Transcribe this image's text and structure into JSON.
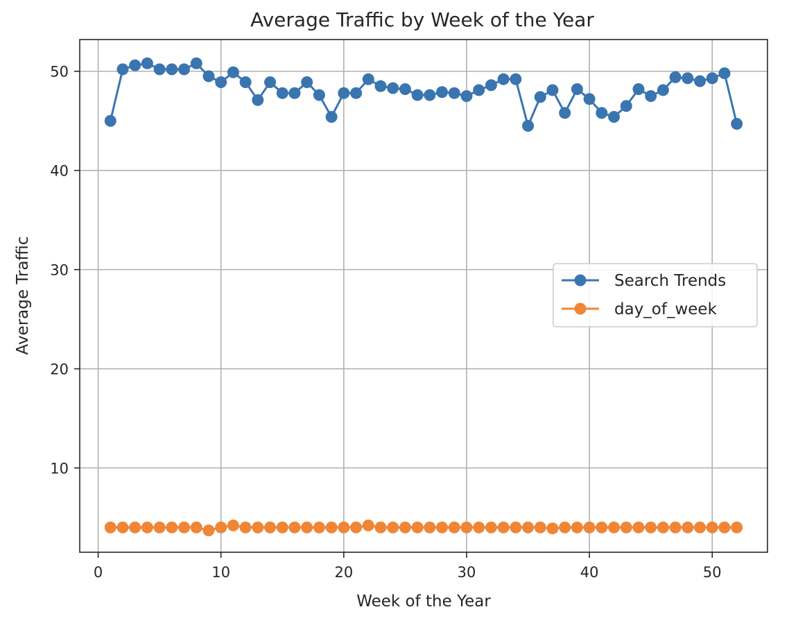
{
  "chart_data": {
    "type": "line",
    "title": "Average Traffic by Week of the Year",
    "xlabel": "Week of the Year",
    "ylabel": "Average Traffic",
    "xlim": [
      -1.5,
      54.5
    ],
    "ylim": [
      1.5,
      53.2
    ],
    "xticks": [
      0,
      10,
      20,
      30,
      40,
      50
    ],
    "yticks": [
      10,
      20,
      30,
      40,
      50
    ],
    "grid": true,
    "legend_position": "center-right",
    "x": [
      1,
      2,
      3,
      4,
      5,
      6,
      7,
      8,
      9,
      10,
      11,
      12,
      13,
      14,
      15,
      16,
      17,
      18,
      19,
      20,
      21,
      22,
      23,
      24,
      25,
      26,
      27,
      28,
      29,
      30,
      31,
      32,
      33,
      34,
      35,
      36,
      37,
      38,
      39,
      40,
      41,
      42,
      43,
      44,
      45,
      46,
      47,
      48,
      49,
      50,
      51,
      52
    ],
    "series": [
      {
        "name": "Search Trends",
        "color": "#3a75b0",
        "marker": "circle",
        "values": [
          45.0,
          50.2,
          50.6,
          50.8,
          50.2,
          50.2,
          50.2,
          50.8,
          49.5,
          48.9,
          49.9,
          48.9,
          47.1,
          48.9,
          47.8,
          47.8,
          48.9,
          47.6,
          45.4,
          47.8,
          47.8,
          49.2,
          48.5,
          48.3,
          48.2,
          47.6,
          47.6,
          47.9,
          47.8,
          47.5,
          48.1,
          48.6,
          49.2,
          49.2,
          44.5,
          47.4,
          48.1,
          45.8,
          48.2,
          47.2,
          45.8,
          45.4,
          46.5,
          48.2,
          47.5,
          48.1,
          49.4,
          49.3,
          49.0,
          49.3,
          49.8,
          44.7
        ]
      },
      {
        "name": "day_of_week",
        "color": "#ef8636",
        "marker": "circle",
        "values": [
          4.0,
          4.0,
          4.0,
          4.0,
          4.0,
          4.0,
          4.0,
          4.0,
          3.7,
          4.0,
          4.2,
          4.0,
          4.0,
          4.0,
          4.0,
          4.0,
          4.0,
          4.0,
          4.0,
          4.0,
          4.0,
          4.2,
          4.0,
          4.0,
          4.0,
          4.0,
          4.0,
          4.0,
          4.0,
          4.0,
          4.0,
          4.0,
          4.0,
          4.0,
          4.0,
          4.0,
          3.9,
          4.0,
          4.0,
          4.0,
          4.0,
          4.0,
          4.0,
          4.0,
          4.0,
          4.0,
          4.0,
          4.0,
          4.0,
          4.0,
          4.0,
          4.0
        ]
      }
    ]
  }
}
